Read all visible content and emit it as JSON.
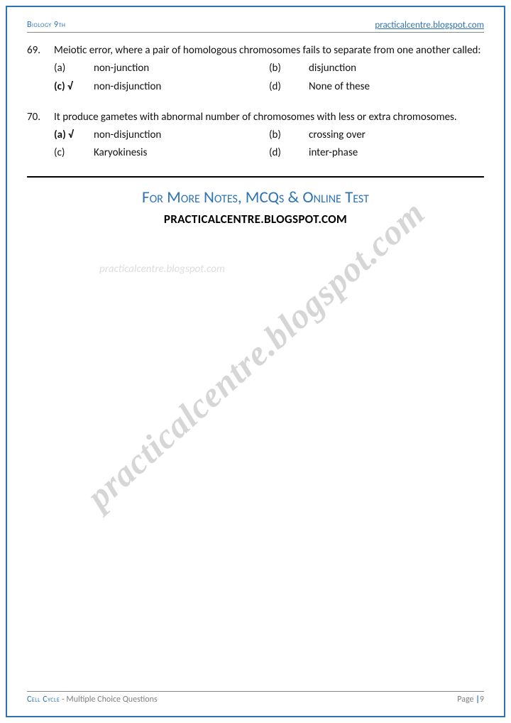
{
  "header": {
    "subject": "Biology 9th",
    "site": "practicalcentre.blogspot.com"
  },
  "questions": [
    {
      "num": "69.",
      "text": "Meiotic error, where a pair of homologous chromosomes fails to separate from one another called:",
      "options": {
        "a": {
          "label": "(a)",
          "text": "non-junction",
          "correct": false
        },
        "b": {
          "label": "(b)",
          "text": "disjunction",
          "correct": false
        },
        "c": {
          "label": "(c) √",
          "text": "non-disjunction",
          "correct": true
        },
        "d": {
          "label": "(d)",
          "text": "None of these",
          "correct": false
        }
      }
    },
    {
      "num": "70.",
      "text": "It produce gametes with abnormal number of chromosomes with less or extra chromosomes.",
      "options": {
        "a": {
          "label": "(a) √",
          "text": "non-disjunction",
          "correct": true
        },
        "b": {
          "label": "(b)",
          "text": "crossing over",
          "correct": false
        },
        "c": {
          "label": "(c)",
          "text": "Karyokinesis",
          "correct": false
        },
        "d": {
          "label": "(d)",
          "text": "inter-phase",
          "correct": false
        }
      }
    }
  ],
  "cta": {
    "title": "For More Notes, MCQs & Online Test",
    "url": "PRACTICALCENTRE.BLOGSPOT.COM"
  },
  "watermark": {
    "small": "practicalcentre.blogspot.com",
    "big": "practicalcentre.blogspot.com"
  },
  "footer": {
    "topic": "Cell Cycle",
    "sub": " - Multiple Choice Questions",
    "page_label": "Page ",
    "bar": "|",
    "page_num": "9"
  },
  "style": {
    "accent": "#2e74b5",
    "text": "#111111",
    "muted": "#7f7f7f",
    "wm_color": "#d6d6d6",
    "border_color": "#2e74b5"
  }
}
